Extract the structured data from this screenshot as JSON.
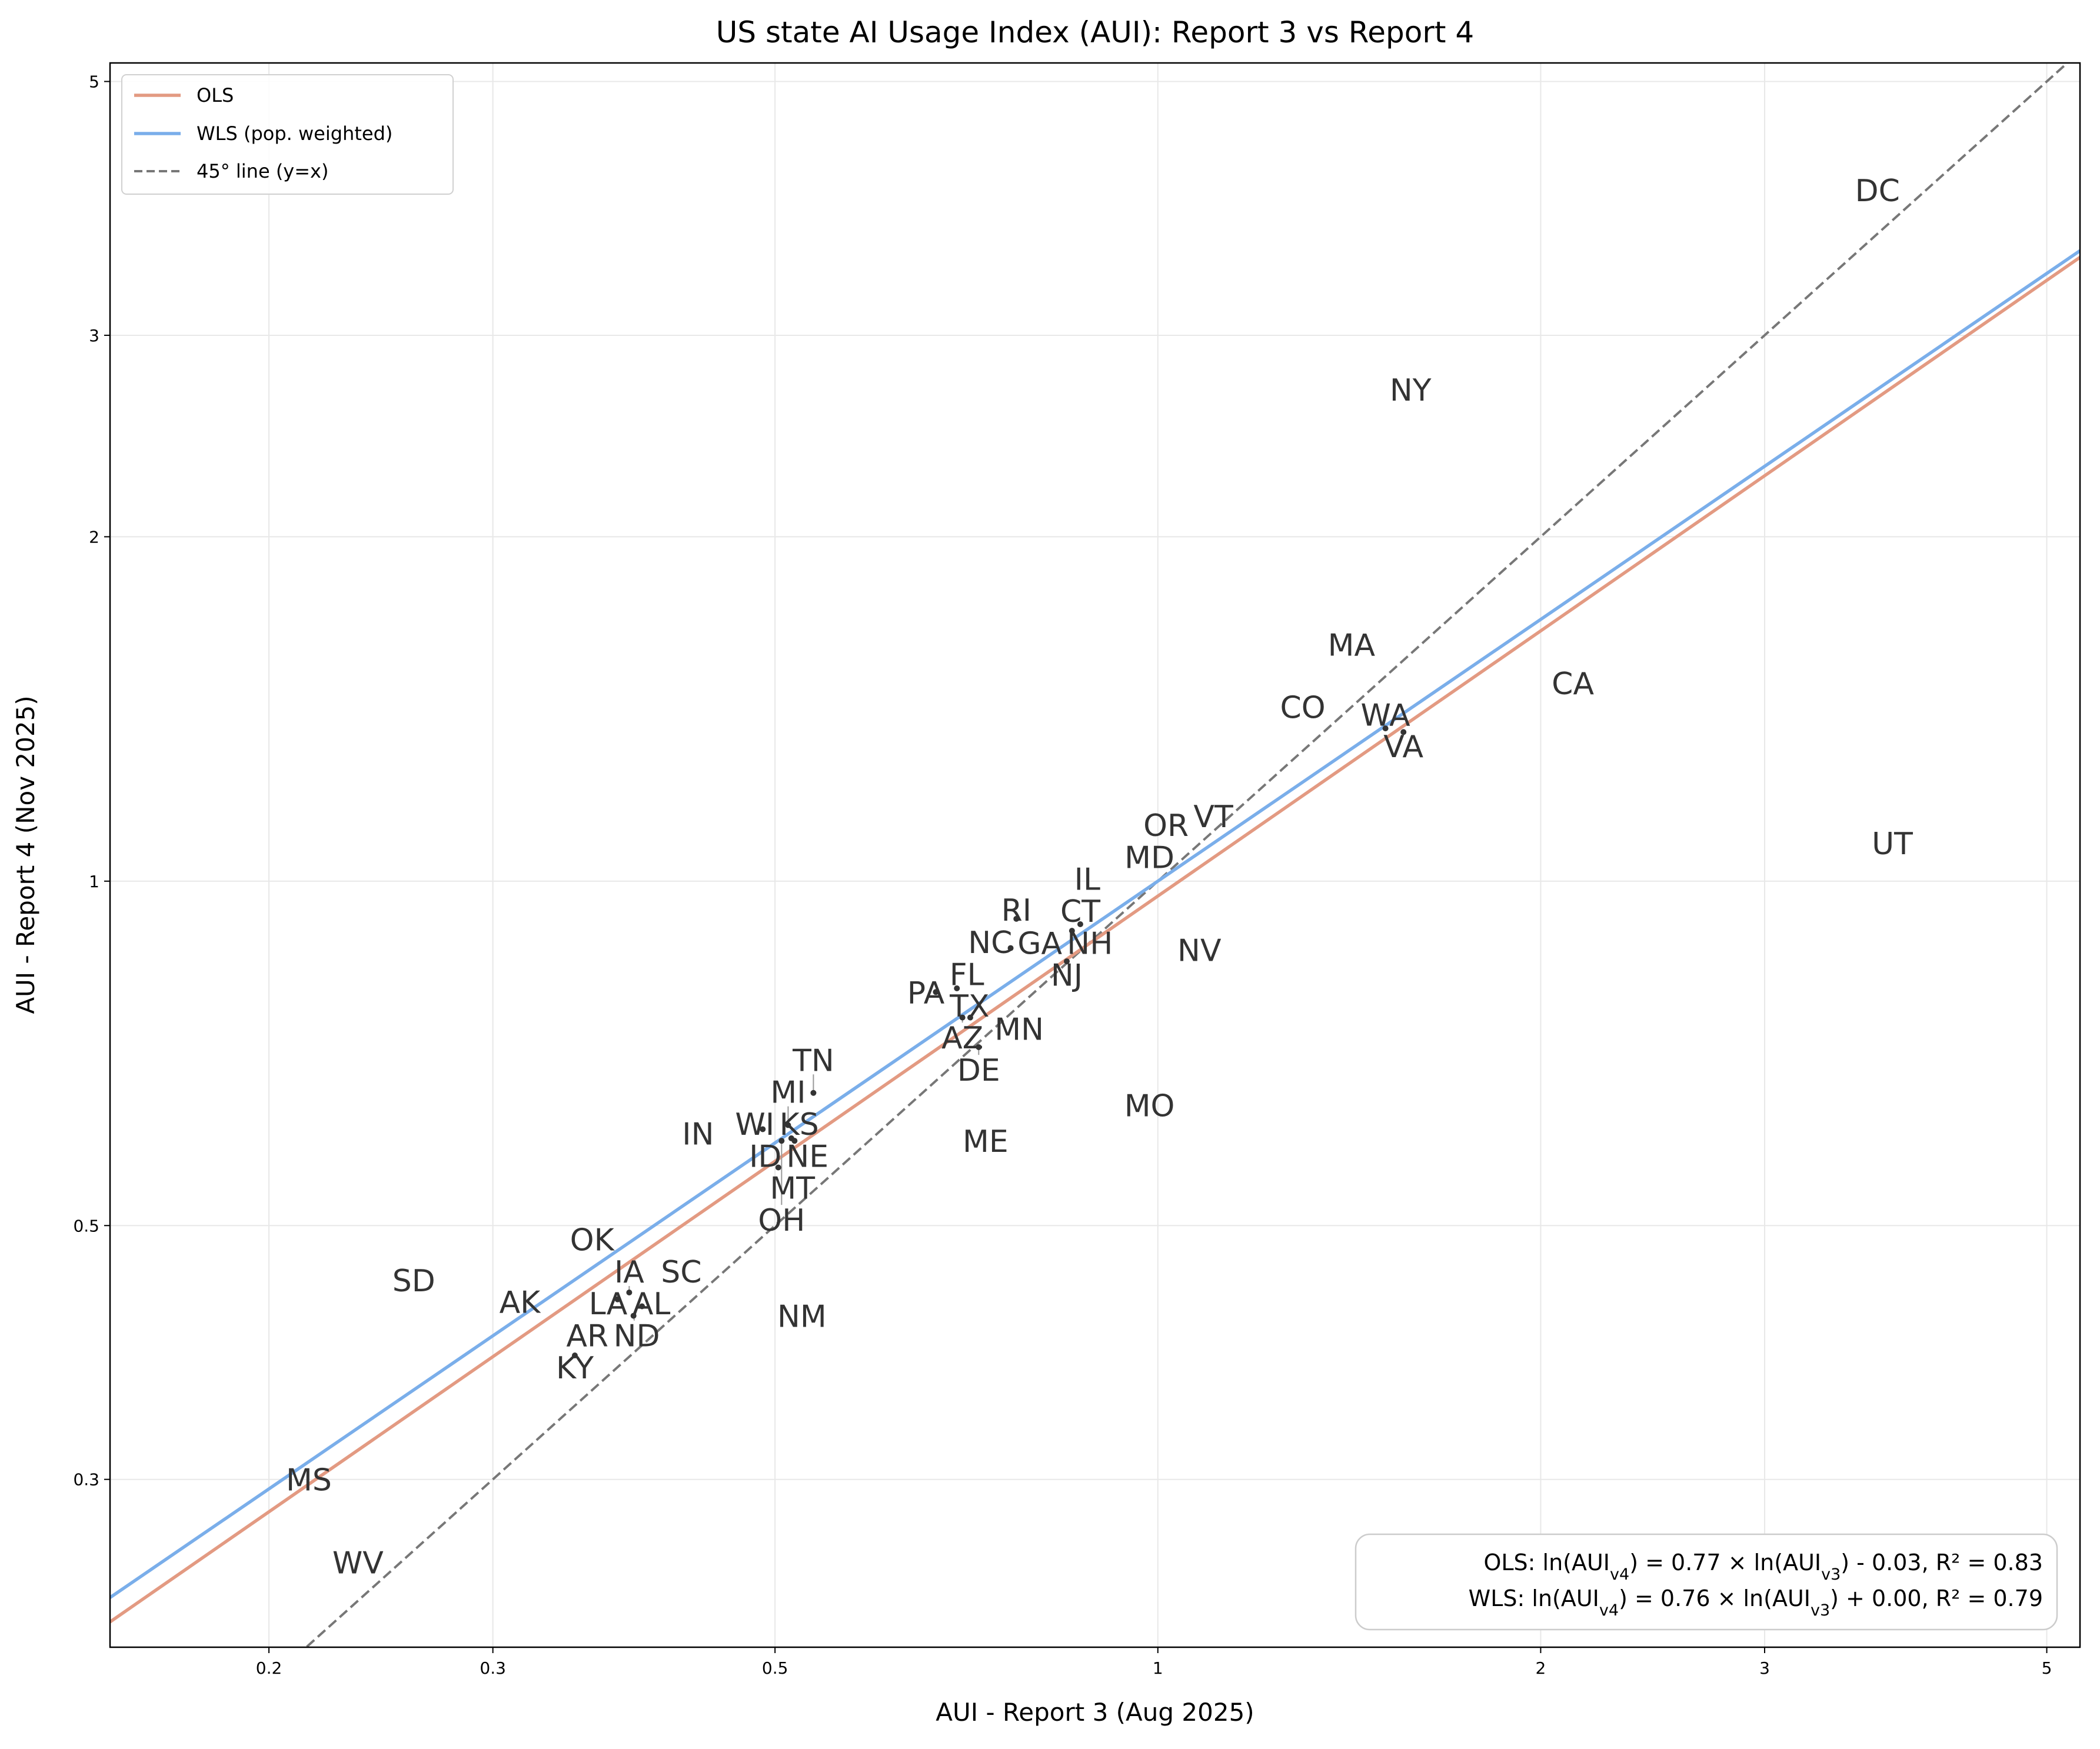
{
  "chart_data": {
    "type": "scatter",
    "title": "US state AI Usage Index (AUI): Report 3 vs Report 4",
    "xlabel": "AUI - Report 3 (Aug 2025)",
    "ylabel": "AUI - Report 4 (Nov 2025)",
    "xscale": "log",
    "yscale": "log",
    "xlim": [
      0.15,
      5.31
    ],
    "ylim": [
      0.214,
      5.19
    ],
    "xticks": [
      0.2,
      0.3,
      0.5,
      1,
      2,
      3,
      5
    ],
    "xtick_labels": [
      "0.2",
      "0.3",
      "0.5",
      "1",
      "2",
      "3",
      "5"
    ],
    "yticks": [
      0.3,
      0.5,
      1,
      2,
      3,
      5
    ],
    "ytick_labels": [
      "0.3",
      "0.5",
      "1",
      "2",
      "3",
      "5"
    ],
    "grid": true,
    "legend_placement": "top-left",
    "colors": {
      "ols": "#e39a82",
      "wls": "#7aaeea",
      "diag": "#777777",
      "label": "#333333"
    },
    "lines": [
      {
        "name": "OLS",
        "slope": 0.77,
        "intercept": -0.03,
        "style": "solid",
        "color": "#e39a82"
      },
      {
        "name": "WLS (pop. weighted)",
        "slope": 0.76,
        "intercept": 0.0,
        "style": "solid",
        "color": "#7aaeea"
      },
      {
        "name": "45° line (y=x)",
        "slope": 1,
        "intercept": 0,
        "style": "dashed",
        "color": "#777777"
      }
    ],
    "points": [
      {
        "label": "DC",
        "x": 3.68,
        "y": 4.02
      },
      {
        "label": "NY",
        "x": 1.58,
        "y": 2.69
      },
      {
        "label": "MA",
        "x": 1.42,
        "y": 1.61
      },
      {
        "label": "CA",
        "x": 2.12,
        "y": 1.49
      },
      {
        "label": "CO",
        "x": 1.3,
        "y": 1.42
      },
      {
        "label": "WA",
        "x": 1.51,
        "y": 1.36
      },
      {
        "label": "VA",
        "x": 1.56,
        "y": 1.35
      },
      {
        "label": "UT",
        "x": 3.78,
        "y": 1.08
      },
      {
        "label": "VT",
        "x": 1.1,
        "y": 1.14
      },
      {
        "label": "OR",
        "x": 1.02,
        "y": 1.12
      },
      {
        "label": "MD",
        "x": 0.985,
        "y": 1.05
      },
      {
        "label": "IL",
        "x": 0.88,
        "y": 0.99
      },
      {
        "label": "RI",
        "x": 0.774,
        "y": 0.927
      },
      {
        "label": "CT",
        "x": 0.869,
        "y": 0.917
      },
      {
        "label": "NH",
        "x": 0.856,
        "y": 0.905
      },
      {
        "label": "NC",
        "x": 0.766,
        "y": 0.874
      },
      {
        "label": "GA",
        "x": 0.804,
        "y": 0.876
      },
      {
        "label": "NJ",
        "x": 0.848,
        "y": 0.851
      },
      {
        "label": "NV",
        "x": 1.078,
        "y": 0.871
      },
      {
        "label": "PA",
        "x": 0.669,
        "y": 0.8
      },
      {
        "label": "FL",
        "x": 0.695,
        "y": 0.806
      },
      {
        "label": "AZ",
        "x": 0.702,
        "y": 0.76
      },
      {
        "label": "TX",
        "x": 0.712,
        "y": 0.76
      },
      {
        "label": "MN",
        "x": 0.777,
        "y": 0.743
      },
      {
        "label": "DE",
        "x": 0.723,
        "y": 0.716
      },
      {
        "label": "MO",
        "x": 0.985,
        "y": 0.637
      },
      {
        "label": "ME",
        "x": 0.732,
        "y": 0.593
      },
      {
        "label": "TN",
        "x": 0.536,
        "y": 0.653
      },
      {
        "label": "IN",
        "x": 0.435,
        "y": 0.602
      },
      {
        "label": "WI",
        "x": 0.489,
        "y": 0.607
      },
      {
        "label": "MI",
        "x": 0.512,
        "y": 0.612
      },
      {
        "label": "OH",
        "x": 0.506,
        "y": 0.593
      },
      {
        "label": "KS",
        "x": 0.515,
        "y": 0.596
      },
      {
        "label": "NE",
        "x": 0.518,
        "y": 0.593
      },
      {
        "label": "ID",
        "x": 0.503,
        "y": 0.562
      },
      {
        "label": "MT",
        "x": 0.516,
        "y": 0.545
      },
      {
        "label": "OK",
        "x": 0.359,
        "y": 0.482
      },
      {
        "label": "SD",
        "x": 0.26,
        "y": 0.448
      },
      {
        "label": "SC",
        "x": 0.422,
        "y": 0.454
      },
      {
        "label": "AK",
        "x": 0.315,
        "y": 0.429
      },
      {
        "label": "LA",
        "x": 0.376,
        "y": 0.431
      },
      {
        "label": "IA",
        "x": 0.384,
        "y": 0.437
      },
      {
        "label": "AL",
        "x": 0.393,
        "y": 0.425
      },
      {
        "label": "ND",
        "x": 0.387,
        "y": 0.417
      },
      {
        "label": "NM",
        "x": 0.525,
        "y": 0.417
      },
      {
        "label": "AR",
        "x": 0.358,
        "y": 0.398
      },
      {
        "label": "KY",
        "x": 0.348,
        "y": 0.385
      },
      {
        "label": "MS",
        "x": 0.215,
        "y": 0.3
      },
      {
        "label": "WV",
        "x": 0.235,
        "y": 0.254
      }
    ],
    "annotation": [
      {
        "prefix": "OLS: ln(AUI",
        "sub1": "v4",
        "mid": ") = 0.77 × ln(AUI",
        "sub2": "v3",
        "suffix": ") - 0.03, R² = 0.83"
      },
      {
        "prefix": "WLS: ln(AUI",
        "sub1": "v4",
        "mid": ") = 0.76 × ln(AUI",
        "sub2": "v3",
        "suffix": ") + 0.00, R² = 0.79"
      }
    ]
  }
}
